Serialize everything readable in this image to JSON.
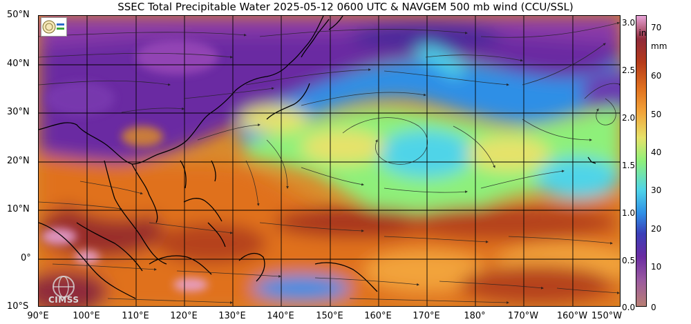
{
  "title": "SSEC Total Precipitable Water  2025-05-12 0600 UTC & NAVGEM 500 mb wind (CCU/SSL)",
  "logo_text": "CIMSS",
  "latitude_labels": [
    "50°N",
    "40°N",
    "30°N",
    "20°N",
    "10°N",
    "0°",
    "10°S"
  ],
  "longitude_labels": [
    "90°E",
    "100°E",
    "110°E",
    "120°E",
    "130°E",
    "140°E",
    "150°E",
    "160°E",
    "170°E",
    "180°",
    "170°W",
    "160°W",
    "150°W"
  ],
  "colorbar": {
    "inch_unit": "in",
    "mm_unit": "mm",
    "inch_ticks": [
      "3.0",
      "2.5",
      "2.0",
      "1.5",
      "1.0",
      "0.5",
      "0.0"
    ],
    "mm_ticks": [
      "70",
      "60",
      "50",
      "40",
      "30",
      "20",
      "10",
      "0"
    ],
    "colors": {
      "dry": "#6a2ca2",
      "low": "#2f8fe6",
      "mid": "#8ef07a",
      "moist": "#f2a33a",
      "wet": "#b53a1a",
      "very_wet": "#e8a4d8"
    }
  },
  "map_colors": {
    "land_outline": "#000000",
    "grid": "#000000",
    "streamline": "#222222"
  }
}
